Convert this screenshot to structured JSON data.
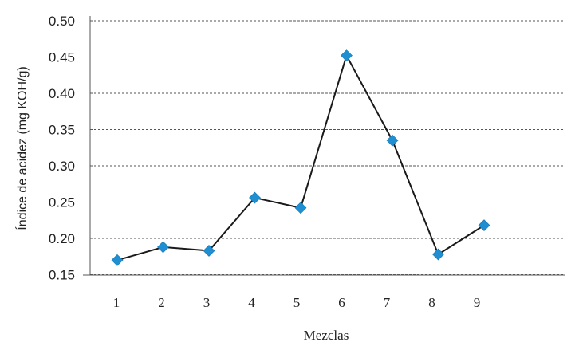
{
  "chart_data": {
    "type": "line",
    "title": "",
    "xlabel": "Mezclas",
    "ylabel": "Índice de acidez (mg KOH/g)",
    "y_tick_labels": [
      "0.50",
      "0.45",
      "0.40",
      "0.35",
      "0.30",
      "0.25",
      "0.20",
      "0.15"
    ],
    "x_tick_labels": [
      "1",
      "2",
      "3",
      "4",
      "5",
      "6",
      "7",
      "8",
      "9"
    ],
    "grid": true,
    "legend": "none",
    "series": [
      {
        "values": [
          0.17,
          0.188,
          0.183,
          0.256,
          0.242,
          0.452,
          0.335,
          0.178,
          0.218
        ],
        "color": "#1f8fd1",
        "marker": "diamond",
        "line_color": "#1a1a1a"
      }
    ],
    "ylim": [
      0.0,
      0.5
    ]
  }
}
